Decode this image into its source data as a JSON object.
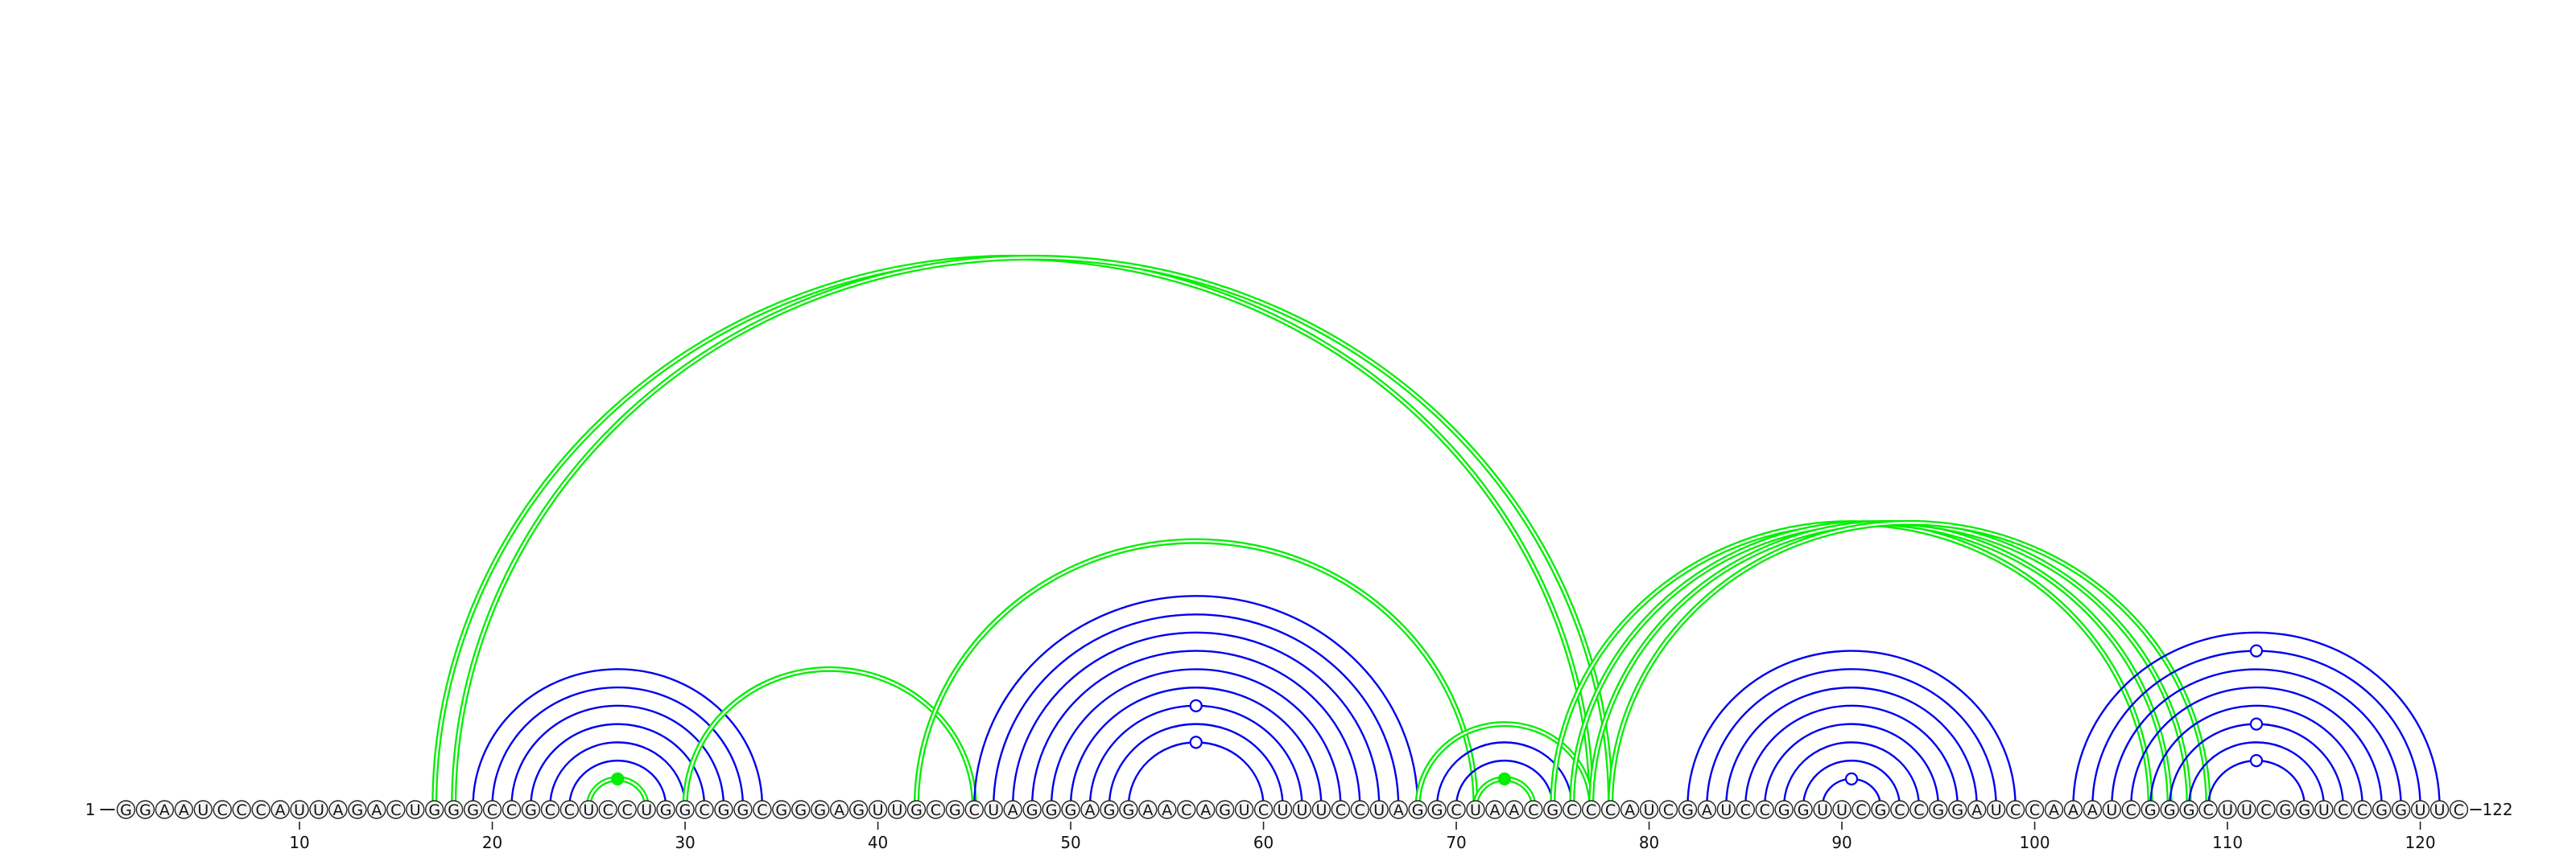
{
  "sequence": "GGAAUCCCAUUAGACUGGGCCGCCUCCUGGCGGCGGGAGUUGCGCUAGGGAGGAACAGUCUUUCCUAGGCUAACGCCCAUCGAUCCGGUUCGCCGGAUCCAAAUCGGGCUUCGGUCCGGUUC",
  "start_label": "1",
  "end_label": "122",
  "ticks": [
    10,
    20,
    30,
    40,
    50,
    60,
    70,
    80,
    90,
    100,
    110,
    120
  ],
  "colors": {
    "nested_pair": "#0000ee",
    "pseudoknot_pair": "#00ee00",
    "open_marker": "#0000ee",
    "filled_marker": "#00ee00"
  },
  "pairs": [
    {
      "i": 17,
      "j": 77,
      "type": "pseudoknot",
      "double": true
    },
    {
      "i": 18,
      "j": 78,
      "type": "pseudoknot",
      "double": true
    },
    {
      "i": 19,
      "j": 34,
      "type": "nested"
    },
    {
      "i": 20,
      "j": 33,
      "type": "nested"
    },
    {
      "i": 21,
      "j": 32,
      "type": "nested"
    },
    {
      "i": 22,
      "j": 31,
      "type": "nested"
    },
    {
      "i": 23,
      "j": 30,
      "type": "nested"
    },
    {
      "i": 24,
      "j": 29,
      "type": "nested"
    },
    {
      "i": 25,
      "j": 28,
      "type": "pseudoknot",
      "double": true,
      "marker": "filled"
    },
    {
      "i": 30,
      "j": 45,
      "type": "pseudoknot",
      "double": true
    },
    {
      "i": 42,
      "j": 71,
      "type": "pseudoknot",
      "double": true
    },
    {
      "i": 45,
      "j": 68,
      "type": "nested"
    },
    {
      "i": 46,
      "j": 67,
      "type": "nested"
    },
    {
      "i": 47,
      "j": 66,
      "type": "nested"
    },
    {
      "i": 48,
      "j": 65,
      "type": "nested"
    },
    {
      "i": 49,
      "j": 64,
      "type": "nested"
    },
    {
      "i": 50,
      "j": 63,
      "type": "nested"
    },
    {
      "i": 51,
      "j": 62,
      "type": "nested",
      "marker": "open"
    },
    {
      "i": 52,
      "j": 61,
      "type": "nested"
    },
    {
      "i": 53,
      "j": 60,
      "type": "nested",
      "marker": "open"
    },
    {
      "i": 68,
      "j": 77,
      "type": "pseudoknot",
      "double": true
    },
    {
      "i": 69,
      "j": 76,
      "type": "nested"
    },
    {
      "i": 70,
      "j": 75,
      "type": "nested"
    },
    {
      "i": 71,
      "j": 74,
      "type": "pseudoknot",
      "double": true,
      "marker": "filled"
    },
    {
      "i": 75,
      "j": 106,
      "type": "pseudoknot",
      "double": true
    },
    {
      "i": 76,
      "j": 107,
      "type": "pseudoknot",
      "double": true
    },
    {
      "i": 77,
      "j": 108,
      "type": "pseudoknot",
      "double": true
    },
    {
      "i": 78,
      "j": 109,
      "type": "pseudoknot",
      "double": true
    },
    {
      "i": 82,
      "j": 99,
      "type": "nested"
    },
    {
      "i": 83,
      "j": 98,
      "type": "nested"
    },
    {
      "i": 84,
      "j": 97,
      "type": "nested"
    },
    {
      "i": 85,
      "j": 96,
      "type": "nested"
    },
    {
      "i": 86,
      "j": 95,
      "type": "nested"
    },
    {
      "i": 87,
      "j": 94,
      "type": "nested"
    },
    {
      "i": 88,
      "j": 93,
      "type": "nested"
    },
    {
      "i": 89,
      "j": 92,
      "type": "nested",
      "marker": "open"
    },
    {
      "i": 102,
      "j": 121,
      "type": "nested"
    },
    {
      "i": 103,
      "j": 120,
      "type": "nested",
      "marker": "open"
    },
    {
      "i": 104,
      "j": 119,
      "type": "nested"
    },
    {
      "i": 105,
      "j": 118,
      "type": "nested"
    },
    {
      "i": 106,
      "j": 117,
      "type": "nested"
    },
    {
      "i": 107,
      "j": 116,
      "type": "nested",
      "marker": "open"
    },
    {
      "i": 108,
      "j": 115,
      "type": "nested"
    },
    {
      "i": 109,
      "j": 114,
      "type": "nested",
      "marker": "open"
    }
  ]
}
